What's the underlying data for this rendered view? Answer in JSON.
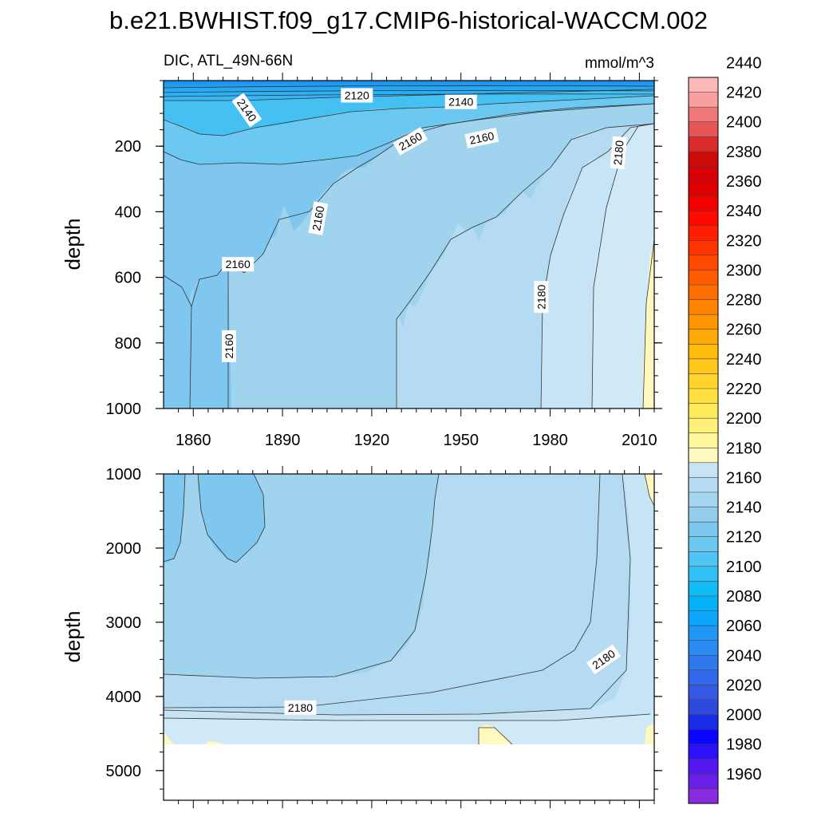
{
  "chart_data": {
    "type": "heatmap",
    "title": "b.e21.BWHIST.f09_g17.CMIP6-historical-WACCM.002",
    "subtitle_left": "DIC, ATL_49N-66N",
    "subtitle_right": "mmol/m^3",
    "ylabel": "depth",
    "x_ticks": [
      1860,
      1890,
      1920,
      1950,
      1980,
      2010
    ],
    "x_tick_labels": [
      "1860",
      "1890",
      "1920",
      "1950",
      "1980",
      "2010"
    ],
    "xlim": [
      1850,
      2015
    ],
    "upper_panel": {
      "ylim": [
        0,
        1000
      ],
      "y_ticks": [
        200,
        400,
        600,
        800,
        1000
      ],
      "y_tick_labels": [
        "200",
        "400",
        "600",
        "800",
        "1000"
      ],
      "contour_labels": [
        {
          "text": "2120",
          "year": 1915,
          "depth": 45
        },
        {
          "text": "2140",
          "year": 1878,
          "depth": 90,
          "angle": 55
        },
        {
          "text": "2140",
          "year": 1950,
          "depth": 65
        },
        {
          "text": "2160",
          "year": 1933,
          "depth": 185,
          "angle": -30
        },
        {
          "text": "2160",
          "year": 1957,
          "depth": 175,
          "angle": -12
        },
        {
          "text": "2160",
          "year": 1902,
          "depth": 420,
          "angle": -80
        },
        {
          "text": "2160",
          "year": 1875,
          "depth": 560
        },
        {
          "text": "2160",
          "year": 1872,
          "depth": 810,
          "angle": -90
        },
        {
          "text": "2180",
          "year": 2003,
          "depth": 220,
          "angle": -85
        },
        {
          "text": "2180",
          "year": 1977,
          "depth": 660,
          "angle": -90
        }
      ]
    },
    "lower_panel": {
      "ylim": [
        1000,
        5400
      ],
      "y_ticks": [
        1000,
        2000,
        3000,
        4000,
        5000
      ],
      "y_tick_labels": [
        "1000",
        "2000",
        "3000",
        "4000",
        "5000"
      ],
      "contour_labels": [
        {
          "text": "2180",
          "year": 1998,
          "depth": 3500,
          "angle": -35
        },
        {
          "text": "2180",
          "year": 1896,
          "depth": 4150
        }
      ]
    },
    "colorbar": {
      "levels": [
        1960,
        1980,
        2000,
        2020,
        2040,
        2060,
        2080,
        2100,
        2120,
        2140,
        2160,
        2180,
        2200,
        2220,
        2240,
        2260,
        2280,
        2300,
        2320,
        2340,
        2360,
        2380,
        2400,
        2420,
        2440
      ],
      "level_labels": [
        "1960",
        "1980",
        "2000",
        "2020",
        "2040",
        "2060",
        "2080",
        "2100",
        "2120",
        "2140",
        "2160",
        "2180",
        "2200",
        "2220",
        "2240",
        "2260",
        "2280",
        "2300",
        "2320",
        "2340",
        "2360",
        "2380",
        "2400",
        "2420",
        "2440"
      ],
      "colors": [
        "#8a2be2",
        "#6a1fe6",
        "#5218ef",
        "#2d10f8",
        "#0a05ff",
        "#1a2be6",
        "#2f48df",
        "#3559e3",
        "#3368e8",
        "#2f79ee",
        "#2b8af4",
        "#1f97f7",
        "#0da6fa",
        "#06b1f7",
        "#11bbf4",
        "#33c0f3",
        "#50c4f2",
        "#6bc8f0",
        "#7cc8ef",
        "#93cdee",
        "#a6d5ef",
        "#b4dbf1",
        "#c6e4f5",
        "#fff9c0",
        "#fff599",
        "#fff07a",
        "#ffe95c",
        "#ffe040",
        "#ffd42c",
        "#ffc81c",
        "#ffbb0e",
        "#ffa904",
        "#ff9600",
        "#ff8200",
        "#ff6f00",
        "#ff5b00",
        "#ff4800",
        "#ff3300",
        "#ff1f00",
        "#ff0a00",
        "#f00000",
        "#e00000",
        "#d80008",
        "#cc0a0a",
        "#dd2b2b",
        "#e85555",
        "#f07878",
        "#f8a0a0",
        "#ffb8b8"
      ]
    }
  }
}
